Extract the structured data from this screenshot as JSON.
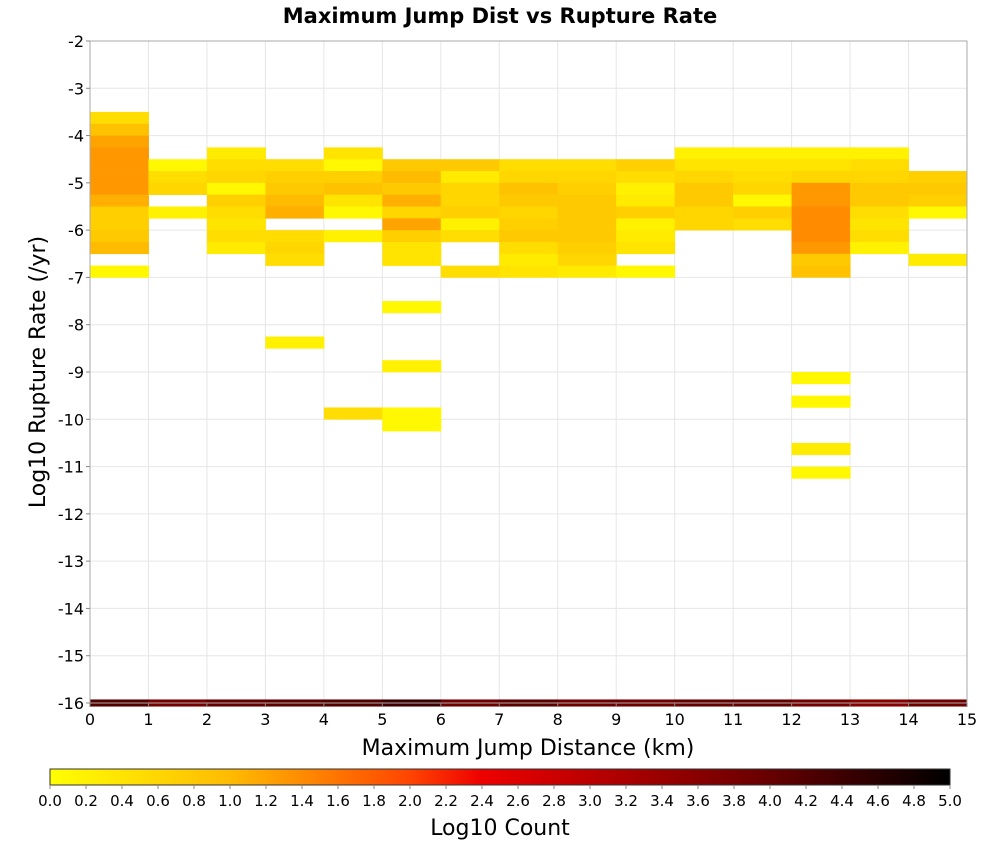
{
  "chart_data": {
    "type": "heatmap",
    "title": "Maximum Jump Dist vs Rupture Rate",
    "xlabel": "Maximum Jump Distance (km)",
    "ylabel": "Log10 Rupture Rate (/yr)",
    "xlim": [
      0,
      15
    ],
    "ylim": [
      -16,
      -2
    ],
    "xticks": [
      "0",
      "1",
      "2",
      "3",
      "4",
      "5",
      "6",
      "7",
      "8",
      "9",
      "10",
      "11",
      "12",
      "13",
      "14",
      "15"
    ],
    "yticks": [
      "-2",
      "-3",
      "-4",
      "-5",
      "-6",
      "-7",
      "-8",
      "-9",
      "-10",
      "-11",
      "-12",
      "-13",
      "-14",
      "-15",
      "-16"
    ],
    "grid": true,
    "colorscale": {
      "label": "Log10 Count",
      "range": [
        0,
        5
      ],
      "stops": [
        {
          "v": 0.0,
          "color": "#ffff00"
        },
        {
          "v": 1.0,
          "color": "#ffbb00"
        },
        {
          "v": 2.0,
          "color": "#ff4400"
        },
        {
          "v": 2.4,
          "color": "#ee0000"
        },
        {
          "v": 3.2,
          "color": "#aa0000"
        },
        {
          "v": 4.0,
          "color": "#660000"
        },
        {
          "v": 5.0,
          "color": "#000000"
        }
      ],
      "ticks": [
        "0.0",
        "0.2",
        "0.4",
        "0.6",
        "0.8",
        "1.0",
        "1.2",
        "1.4",
        "1.6",
        "1.8",
        "2.0",
        "2.2",
        "2.4",
        "2.6",
        "2.8",
        "3.0",
        "3.2",
        "3.4",
        "3.6",
        "3.8",
        "4.0",
        "4.2",
        "4.4",
        "4.6",
        "4.8",
        "5.0"
      ]
    },
    "y_bin_width": 0.25,
    "cells": [
      {
        "x": 0,
        "y": -3.625,
        "v": 0.5
      },
      {
        "x": 0,
        "y": -3.875,
        "v": 0.9
      },
      {
        "x": 0,
        "y": -4.125,
        "v": 1.2
      },
      {
        "x": 0,
        "y": -4.375,
        "v": 1.3
      },
      {
        "x": 0,
        "y": -4.625,
        "v": 1.3
      },
      {
        "x": 0,
        "y": -4.875,
        "v": 1.3
      },
      {
        "x": 0,
        "y": -5.125,
        "v": 1.3
      },
      {
        "x": 0,
        "y": -5.375,
        "v": 1.1
      },
      {
        "x": 0,
        "y": -5.625,
        "v": 0.7
      },
      {
        "x": 0,
        "y": -5.875,
        "v": 0.7
      },
      {
        "x": 0,
        "y": -6.125,
        "v": 0.8
      },
      {
        "x": 0,
        "y": -6.375,
        "v": 1.0
      },
      {
        "x": 0,
        "y": -6.875,
        "v": 0.1
      },
      {
        "x": 1,
        "y": -4.625,
        "v": 0.1
      },
      {
        "x": 1,
        "y": -4.875,
        "v": 0.5
      },
      {
        "x": 1,
        "y": -5.125,
        "v": 0.6
      },
      {
        "x": 1,
        "y": -5.625,
        "v": 0.2
      },
      {
        "x": 2,
        "y": -4.375,
        "v": 0.3
      },
      {
        "x": 2,
        "y": -4.625,
        "v": 0.5
      },
      {
        "x": 2,
        "y": -4.875,
        "v": 0.6
      },
      {
        "x": 2,
        "y": -5.125,
        "v": 0.1
      },
      {
        "x": 2,
        "y": -5.375,
        "v": 0.7
      },
      {
        "x": 2,
        "y": -5.625,
        "v": 0.5
      },
      {
        "x": 2,
        "y": -5.875,
        "v": 0.4
      },
      {
        "x": 2,
        "y": -6.125,
        "v": 0.5
      },
      {
        "x": 2,
        "y": -6.375,
        "v": 0.3
      },
      {
        "x": 3,
        "y": -4.625,
        "v": 0.5
      },
      {
        "x": 3,
        "y": -4.875,
        "v": 0.7
      },
      {
        "x": 3,
        "y": -5.125,
        "v": 0.8
      },
      {
        "x": 3,
        "y": -5.375,
        "v": 1.0
      },
      {
        "x": 3,
        "y": -5.625,
        "v": 1.1
      },
      {
        "x": 3,
        "y": -6.125,
        "v": 0.5
      },
      {
        "x": 3,
        "y": -6.375,
        "v": 0.6
      },
      {
        "x": 3,
        "y": -6.625,
        "v": 0.5
      },
      {
        "x": 3,
        "y": -8.375,
        "v": 0.2
      },
      {
        "x": 4,
        "y": -4.375,
        "v": 0.4
      },
      {
        "x": 4,
        "y": -4.625,
        "v": 0.1
      },
      {
        "x": 4,
        "y": -4.875,
        "v": 0.7
      },
      {
        "x": 4,
        "y": -5.125,
        "v": 0.9
      },
      {
        "x": 4,
        "y": -5.375,
        "v": 0.4
      },
      {
        "x": 4,
        "y": -5.625,
        "v": 0.1
      },
      {
        "x": 4,
        "y": -6.125,
        "v": 0.2
      },
      {
        "x": 4,
        "y": -9.875,
        "v": 0.5
      },
      {
        "x": 5,
        "y": -4.625,
        "v": 0.8
      },
      {
        "x": 5,
        "y": -4.875,
        "v": 1.0
      },
      {
        "x": 5,
        "y": -5.125,
        "v": 0.8
      },
      {
        "x": 5,
        "y": -5.375,
        "v": 1.1
      },
      {
        "x": 5,
        "y": -5.625,
        "v": 0.6
      },
      {
        "x": 5,
        "y": -5.875,
        "v": 1.2
      },
      {
        "x": 5,
        "y": -6.125,
        "v": 0.7
      },
      {
        "x": 5,
        "y": -6.375,
        "v": 0.4
      },
      {
        "x": 5,
        "y": -6.625,
        "v": 0.4
      },
      {
        "x": 5,
        "y": -7.625,
        "v": 0.1
      },
      {
        "x": 5,
        "y": -8.875,
        "v": 0.2
      },
      {
        "x": 5,
        "y": -9.875,
        "v": 0.1
      },
      {
        "x": 5,
        "y": -10.125,
        "v": 0.1
      },
      {
        "x": 6,
        "y": -4.625,
        "v": 0.8
      },
      {
        "x": 6,
        "y": -4.875,
        "v": 0.3
      },
      {
        "x": 6,
        "y": -5.125,
        "v": 0.6
      },
      {
        "x": 6,
        "y": -5.375,
        "v": 0.6
      },
      {
        "x": 6,
        "y": -5.625,
        "v": 0.7
      },
      {
        "x": 6,
        "y": -5.875,
        "v": 0.2
      },
      {
        "x": 6,
        "y": -6.125,
        "v": 0.5
      },
      {
        "x": 6,
        "y": -6.875,
        "v": 0.5
      },
      {
        "x": 7,
        "y": -4.625,
        "v": 0.5
      },
      {
        "x": 7,
        "y": -4.875,
        "v": 0.6
      },
      {
        "x": 7,
        "y": -5.125,
        "v": 0.9
      },
      {
        "x": 7,
        "y": -5.375,
        "v": 0.8
      },
      {
        "x": 7,
        "y": -5.625,
        "v": 0.6
      },
      {
        "x": 7,
        "y": -5.875,
        "v": 0.7
      },
      {
        "x": 7,
        "y": -6.125,
        "v": 0.8
      },
      {
        "x": 7,
        "y": -6.375,
        "v": 0.5
      },
      {
        "x": 7,
        "y": -6.625,
        "v": 0.3
      },
      {
        "x": 7,
        "y": -6.875,
        "v": 0.4
      },
      {
        "x": 8,
        "y": -4.625,
        "v": 0.5
      },
      {
        "x": 8,
        "y": -4.875,
        "v": 0.6
      },
      {
        "x": 8,
        "y": -5.125,
        "v": 0.7
      },
      {
        "x": 8,
        "y": -5.375,
        "v": 0.8
      },
      {
        "x": 8,
        "y": -5.625,
        "v": 0.8
      },
      {
        "x": 8,
        "y": -5.875,
        "v": 0.8
      },
      {
        "x": 8,
        "y": -6.125,
        "v": 0.8
      },
      {
        "x": 8,
        "y": -6.375,
        "v": 0.7
      },
      {
        "x": 8,
        "y": -6.625,
        "v": 0.6
      },
      {
        "x": 8,
        "y": -6.875,
        "v": 0.3
      },
      {
        "x": 9,
        "y": -4.625,
        "v": 0.7
      },
      {
        "x": 9,
        "y": -4.875,
        "v": 0.5
      },
      {
        "x": 9,
        "y": -5.125,
        "v": 0.2
      },
      {
        "x": 9,
        "y": -5.375,
        "v": 0.3
      },
      {
        "x": 9,
        "y": -5.625,
        "v": 0.7
      },
      {
        "x": 9,
        "y": -5.875,
        "v": 0.2
      },
      {
        "x": 9,
        "y": -6.125,
        "v": 0.3
      },
      {
        "x": 9,
        "y": -6.375,
        "v": 0.4
      },
      {
        "x": 9,
        "y": -6.875,
        "v": 0.1
      },
      {
        "x": 10,
        "y": -4.375,
        "v": 0.2
      },
      {
        "x": 10,
        "y": -4.625,
        "v": 0.4
      },
      {
        "x": 10,
        "y": -4.875,
        "v": 0.6
      },
      {
        "x": 10,
        "y": -5.125,
        "v": 0.8
      },
      {
        "x": 10,
        "y": -5.375,
        "v": 0.8
      },
      {
        "x": 10,
        "y": -5.625,
        "v": 0.6
      },
      {
        "x": 10,
        "y": -5.875,
        "v": 0.6
      },
      {
        "x": 11,
        "y": -4.375,
        "v": 0.2
      },
      {
        "x": 11,
        "y": -4.625,
        "v": 0.4
      },
      {
        "x": 11,
        "y": -4.875,
        "v": 0.5
      },
      {
        "x": 11,
        "y": -5.125,
        "v": 0.6
      },
      {
        "x": 11,
        "y": -5.375,
        "v": 0.1
      },
      {
        "x": 11,
        "y": -5.625,
        "v": 0.7
      },
      {
        "x": 11,
        "y": -5.875,
        "v": 0.5
      },
      {
        "x": 12,
        "y": -4.375,
        "v": 0.2
      },
      {
        "x": 12,
        "y": -4.625,
        "v": 0.4
      },
      {
        "x": 12,
        "y": -4.875,
        "v": 0.6
      },
      {
        "x": 12,
        "y": -5.125,
        "v": 1.3
      },
      {
        "x": 12,
        "y": -5.375,
        "v": 1.3
      },
      {
        "x": 12,
        "y": -5.625,
        "v": 1.4
      },
      {
        "x": 12,
        "y": -5.875,
        "v": 1.4
      },
      {
        "x": 12,
        "y": -6.125,
        "v": 1.4
      },
      {
        "x": 12,
        "y": -6.375,
        "v": 1.3
      },
      {
        "x": 12,
        "y": -6.625,
        "v": 0.8
      },
      {
        "x": 12,
        "y": -6.875,
        "v": 0.9
      },
      {
        "x": 12,
        "y": -9.125,
        "v": 0.1
      },
      {
        "x": 12,
        "y": -9.625,
        "v": 0.1
      },
      {
        "x": 12,
        "y": -10.625,
        "v": 0.3
      },
      {
        "x": 12,
        "y": -11.125,
        "v": 0.1
      },
      {
        "x": 13,
        "y": -4.375,
        "v": 0.2
      },
      {
        "x": 13,
        "y": -4.625,
        "v": 0.5
      },
      {
        "x": 13,
        "y": -4.875,
        "v": 0.6
      },
      {
        "x": 13,
        "y": -5.125,
        "v": 0.8
      },
      {
        "x": 13,
        "y": -5.375,
        "v": 0.8
      },
      {
        "x": 13,
        "y": -5.625,
        "v": 0.5
      },
      {
        "x": 13,
        "y": -5.875,
        "v": 0.4
      },
      {
        "x": 13,
        "y": -6.125,
        "v": 0.5
      },
      {
        "x": 13,
        "y": -6.375,
        "v": 0.2
      },
      {
        "x": 14,
        "y": -4.875,
        "v": 0.7
      },
      {
        "x": 14,
        "y": -5.125,
        "v": 0.8
      },
      {
        "x": 14,
        "y": -5.375,
        "v": 0.7
      },
      {
        "x": 14,
        "y": -5.625,
        "v": 0.1
      },
      {
        "x": 14,
        "y": -6.625,
        "v": 0.3
      }
    ],
    "bottom_row": {
      "y": -16,
      "values": [
        4.2,
        3.8,
        4.0,
        4.1,
        4.2,
        4.4,
        3.9,
        4.1,
        3.9,
        3.9,
        4.0,
        4.0,
        3.8,
        3.6,
        3.9
      ]
    }
  }
}
